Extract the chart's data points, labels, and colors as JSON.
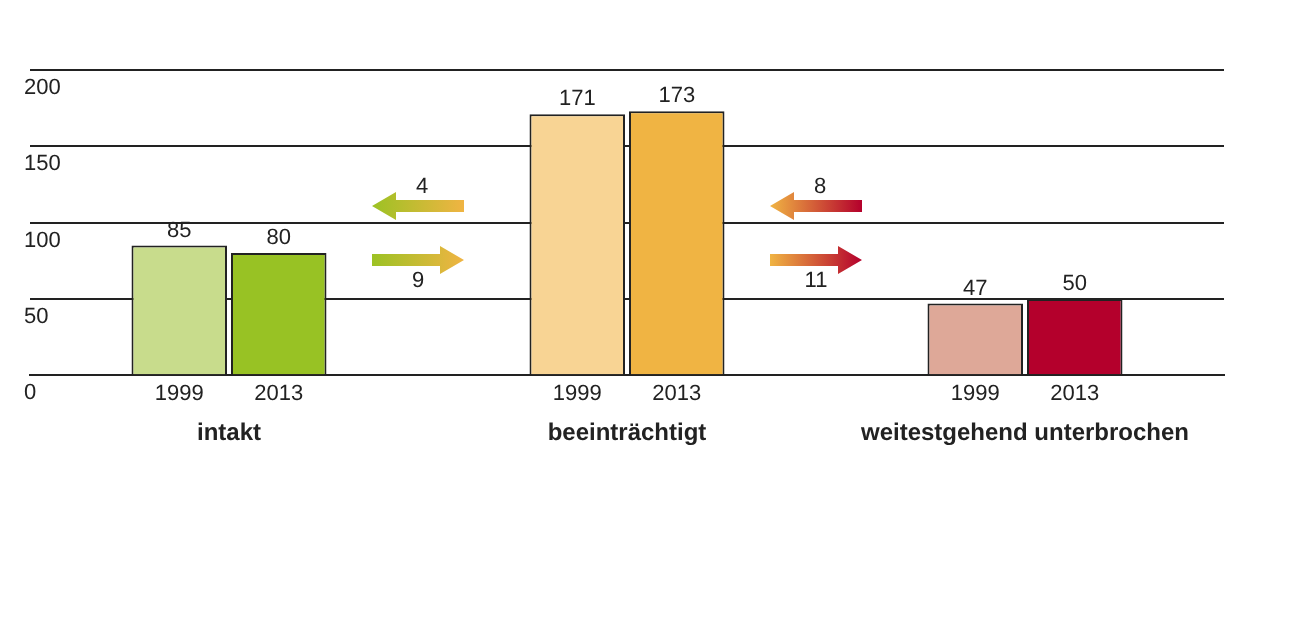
{
  "chart_data": {
    "type": "bar",
    "categories": [
      "intakt",
      "beeinträchtigt",
      "weitestgehend unterbrochen"
    ],
    "series": [
      {
        "name": "1999",
        "colors": [
          "#c8dc8c",
          "#f8d494",
          "#dea898"
        ],
        "values": [
          85,
          171,
          47
        ]
      },
      {
        "name": "2013",
        "colors": [
          "#98c224",
          "#f0b443",
          "#b4002c"
        ],
        "values": [
          80,
          173,
          50
        ]
      }
    ],
    "ylim": [
      0,
      200
    ],
    "yticks": [
      0,
      50,
      100,
      150,
      200
    ],
    "grid": "y",
    "legend": false,
    "data_labels": true,
    "annotations": [
      "4",
      "9",
      "8",
      "11"
    ]
  }
}
